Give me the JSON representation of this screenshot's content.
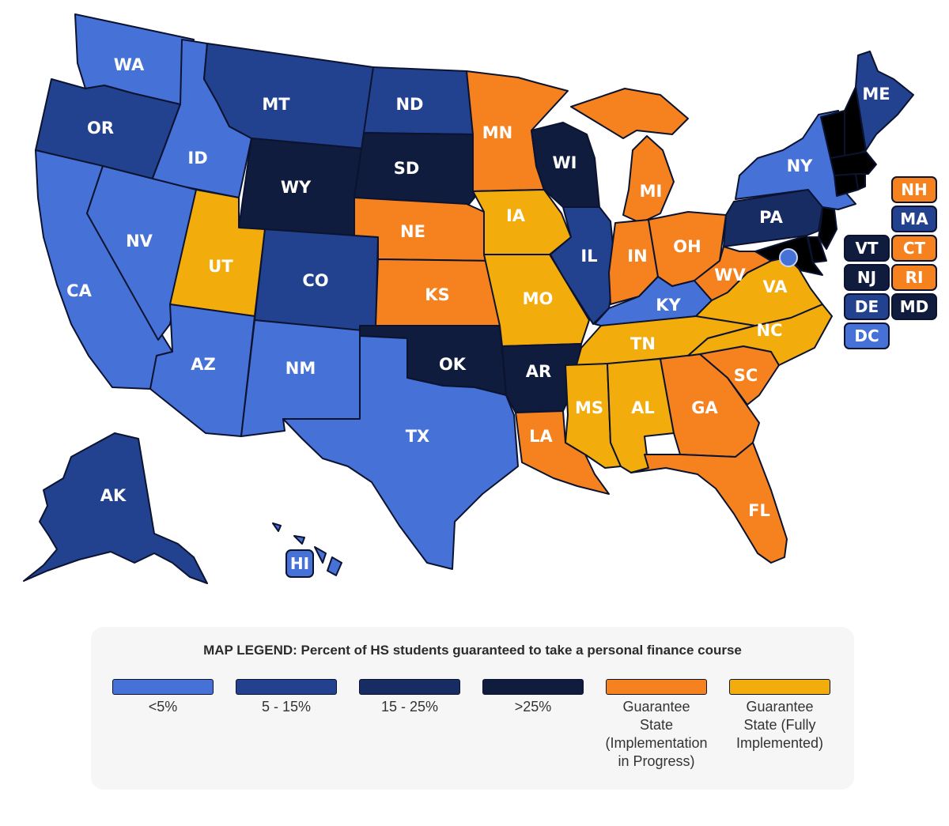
{
  "colors": {
    "lt5": "#4672d8",
    "b5_15": "#22428f",
    "b15_25": "#182c64",
    "gt25": "#0f1c3e",
    "guarantee_progress": "#f5821f",
    "guarantee_full": "#f2ac0b"
  },
  "states": [
    {
      "code": "WA",
      "category": "lt5"
    },
    {
      "code": "OR",
      "category": "b5_15"
    },
    {
      "code": "CA",
      "category": "lt5"
    },
    {
      "code": "ID",
      "category": "lt5"
    },
    {
      "code": "NV",
      "category": "lt5"
    },
    {
      "code": "MT",
      "category": "b5_15"
    },
    {
      "code": "WY",
      "category": "gt25"
    },
    {
      "code": "UT",
      "category": "guarantee_full"
    },
    {
      "code": "AZ",
      "category": "lt5"
    },
    {
      "code": "CO",
      "category": "b5_15"
    },
    {
      "code": "NM",
      "category": "lt5"
    },
    {
      "code": "ND",
      "category": "b5_15"
    },
    {
      "code": "SD",
      "category": "gt25"
    },
    {
      "code": "NE",
      "category": "guarantee_progress"
    },
    {
      "code": "KS",
      "category": "guarantee_progress"
    },
    {
      "code": "OK",
      "category": "gt25"
    },
    {
      "code": "TX",
      "category": "lt5"
    },
    {
      "code": "MN",
      "category": "guarantee_progress"
    },
    {
      "code": "IA",
      "category": "guarantee_full"
    },
    {
      "code": "MO",
      "category": "guarantee_full"
    },
    {
      "code": "AR",
      "category": "gt25"
    },
    {
      "code": "LA",
      "category": "guarantee_progress"
    },
    {
      "code": "WI",
      "category": "gt25"
    },
    {
      "code": "IL",
      "category": "b5_15"
    },
    {
      "code": "MI",
      "category": "guarantee_progress"
    },
    {
      "code": "IN",
      "category": "guarantee_progress"
    },
    {
      "code": "OH",
      "category": "guarantee_progress"
    },
    {
      "code": "KY",
      "category": "lt5"
    },
    {
      "code": "TN",
      "category": "guarantee_full"
    },
    {
      "code": "MS",
      "category": "guarantee_full"
    },
    {
      "code": "AL",
      "category": "guarantee_full"
    },
    {
      "code": "GA",
      "category": "guarantee_progress"
    },
    {
      "code": "FL",
      "category": "guarantee_progress"
    },
    {
      "code": "SC",
      "category": "guarantee_progress"
    },
    {
      "code": "NC",
      "category": "guarantee_full"
    },
    {
      "code": "VA",
      "category": "guarantee_full"
    },
    {
      "code": "WV",
      "category": "guarantee_progress"
    },
    {
      "code": "PA",
      "category": "b15_25"
    },
    {
      "code": "NY",
      "category": "lt5"
    },
    {
      "code": "ME",
      "category": "b5_15"
    },
    {
      "code": "AK",
      "category": "b5_15"
    },
    {
      "code": "HI",
      "category": "lt5"
    }
  ],
  "badges": [
    {
      "code": "NH",
      "category": "guarantee_progress"
    },
    {
      "code": "MA",
      "category": "b5_15"
    },
    {
      "code": "VT",
      "category": "gt25"
    },
    {
      "code": "CT",
      "category": "guarantee_progress"
    },
    {
      "code": "NJ",
      "category": "gt25"
    },
    {
      "code": "RI",
      "category": "guarantee_progress"
    },
    {
      "code": "DE",
      "category": "b5_15"
    },
    {
      "code": "MD",
      "category": "gt25"
    },
    {
      "code": "DC",
      "category": "lt5"
    }
  ],
  "legend": {
    "title": "MAP LEGEND: Percent of HS students guaranteed to take a personal finance course",
    "items": [
      {
        "category": "lt5",
        "label": "<5%"
      },
      {
        "category": "b5_15",
        "label": "5 - 15%"
      },
      {
        "category": "b15_25",
        "label": "15 - 25%"
      },
      {
        "category": "gt25",
        "label": ">25%"
      },
      {
        "category": "guarantee_progress",
        "label": "Guarantee\nState\n(Implementation\nin Progress)"
      },
      {
        "category": "guarantee_full",
        "label": "Guarantee\nState (Fully\nImplemented)"
      }
    ]
  }
}
